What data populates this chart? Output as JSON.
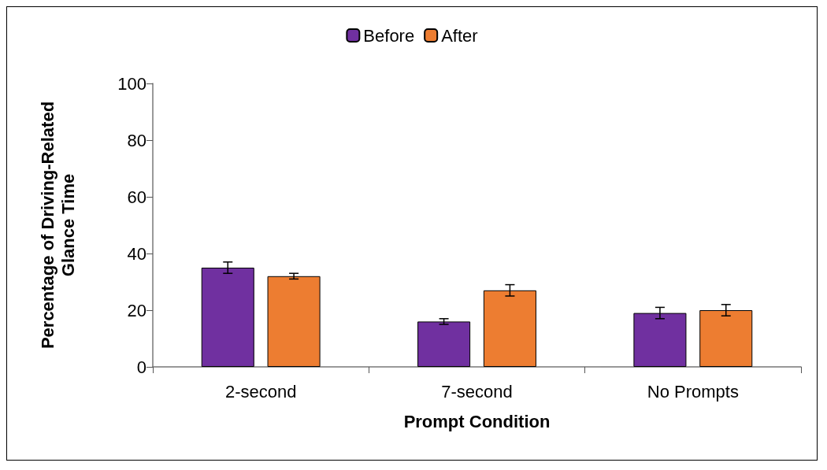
{
  "chart_data": {
    "type": "bar",
    "xlabel": "Prompt Condition",
    "ylabel": "Percentage of Driving-Related\nGlance Time",
    "categories": [
      "2-second",
      "7-second",
      "No Prompts"
    ],
    "series": [
      {
        "name": "Before",
        "color": "#7030a0",
        "values": [
          35,
          16,
          19
        ],
        "errors": [
          2,
          1,
          2
        ]
      },
      {
        "name": "After",
        "color": "#ed7d31",
        "values": [
          32,
          27,
          20
        ],
        "errors": [
          1,
          2,
          2
        ]
      }
    ],
    "ylim": [
      0,
      100
    ],
    "yticks": [
      0,
      20,
      40,
      60,
      80,
      100
    ],
    "grid": false,
    "legend": "top"
  }
}
